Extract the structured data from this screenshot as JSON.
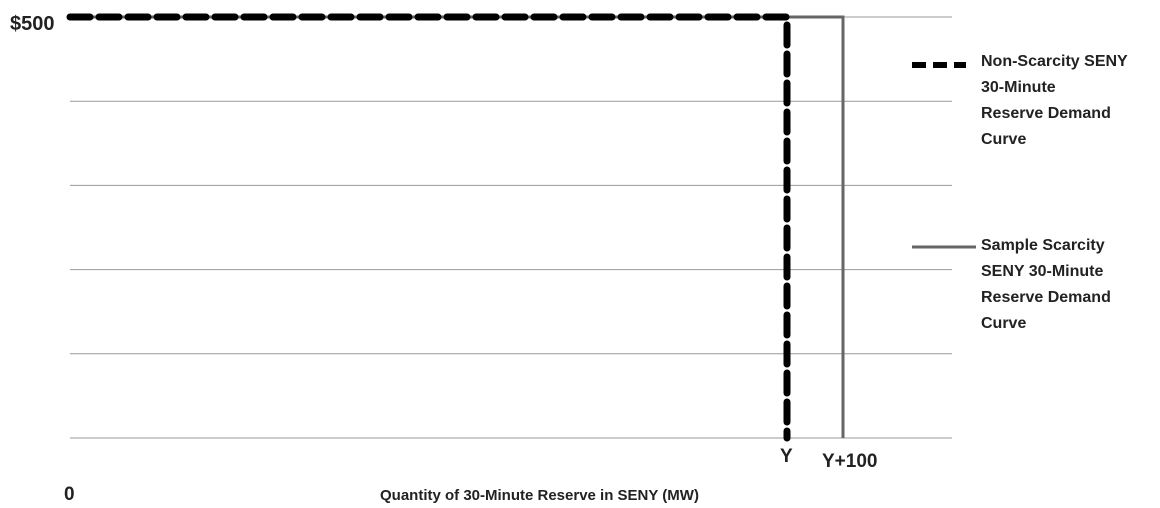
{
  "chart_data": {
    "type": "line",
    "title": "",
    "xlabel": "Quantity of 30-Minute Reserve in SENY (MW)",
    "ylabel": "",
    "origin_label": "0",
    "y_tick_labels": [
      "$500"
    ],
    "x_tick_labels": [
      "Y",
      "Y+100"
    ],
    "grid": true,
    "legend_position": "right",
    "series": [
      {
        "name": "Non-Scarcity SENY 30-Minute Reserve Demand Curve",
        "style": "dashed",
        "color": "#000000",
        "points": [
          [
            "0",
            500
          ],
          [
            "Y",
            500
          ],
          [
            "Y",
            0
          ]
        ]
      },
      {
        "name": "Sample Scarcity SENY 30-Minute Reserve Demand Curve",
        "style": "solid",
        "color": "#666666",
        "points": [
          [
            "0",
            500
          ],
          [
            "Y+100",
            500
          ],
          [
            "Y+100",
            0
          ]
        ]
      }
    ],
    "legend": [
      {
        "series": 0,
        "lines": [
          "Non-Scarcity SENY",
          "30-Minute",
          "Reserve Demand",
          "Curve"
        ]
      },
      {
        "series": 1,
        "lines": [
          "Sample Scarcity",
          "SENY 30-Minute",
          "Reserve Demand",
          "Curve"
        ]
      }
    ]
  }
}
